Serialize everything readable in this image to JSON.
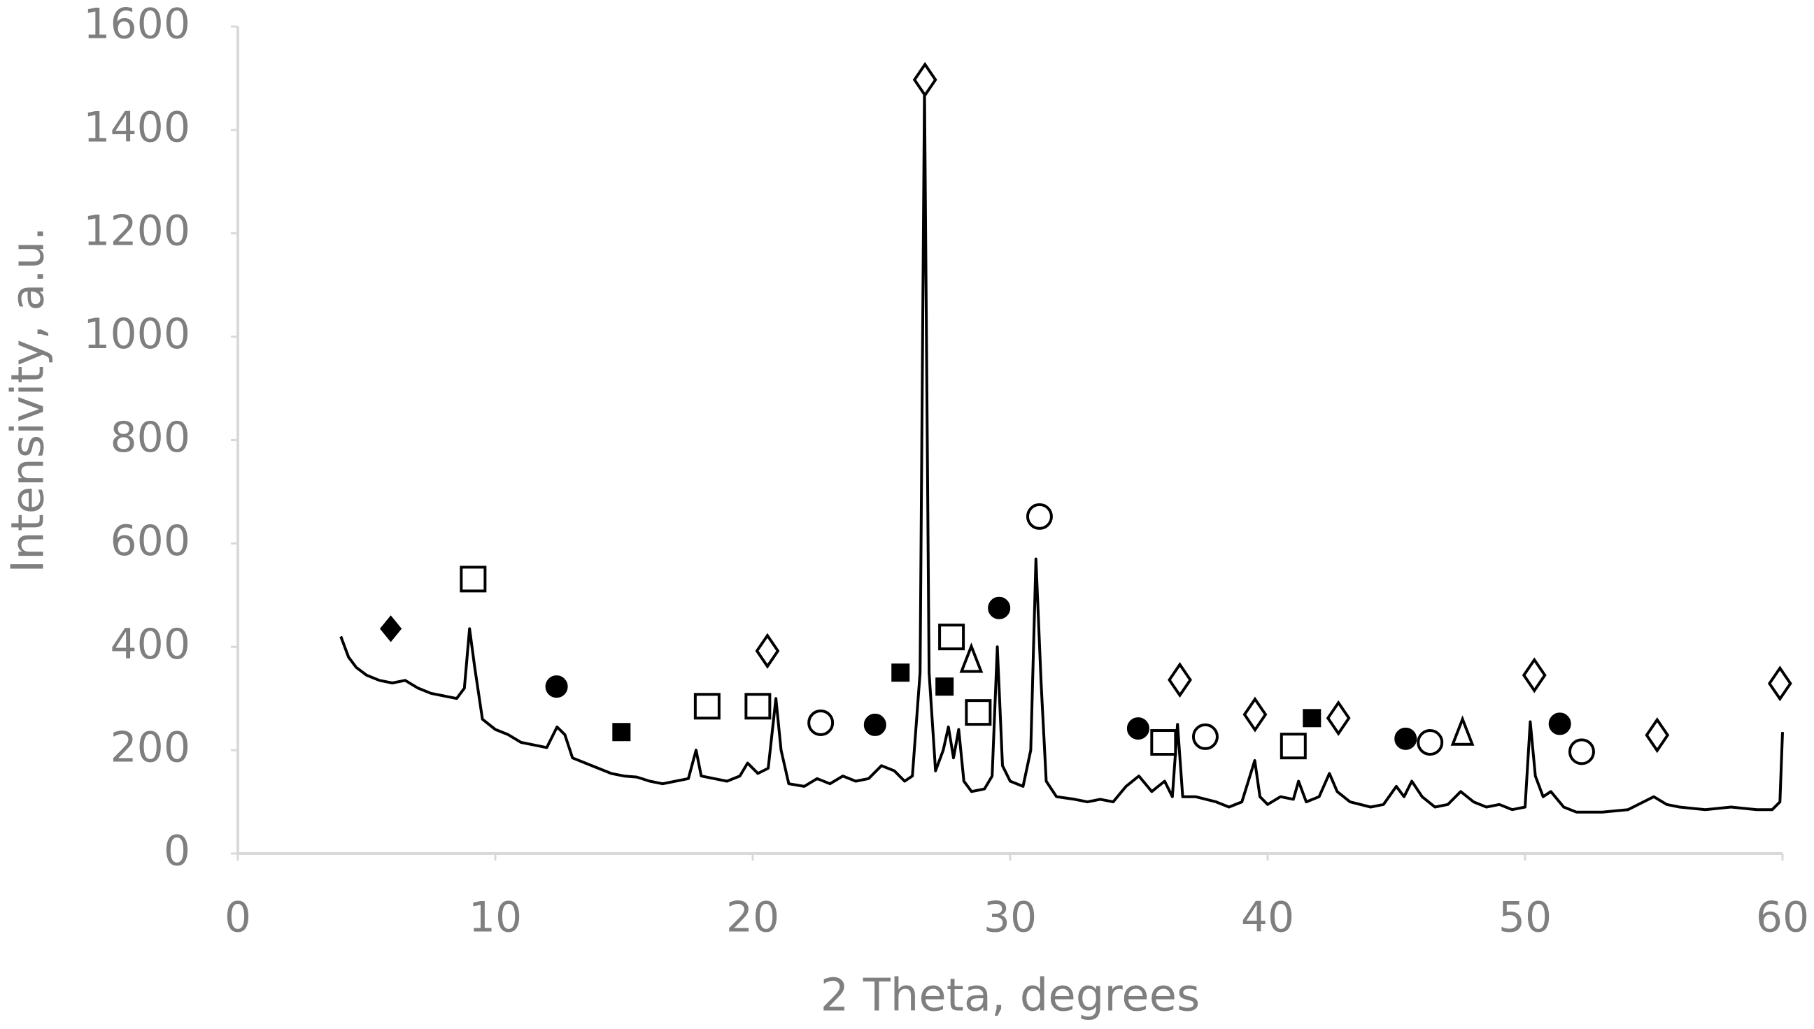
{
  "chart_data": {
    "type": "line",
    "xlabel": "2 Theta, degrees",
    "ylabel": "Intensivity, a.u.",
    "xlim": [
      0,
      60
    ],
    "ylim": [
      0,
      1600
    ],
    "xticks": [
      0,
      10,
      20,
      30,
      40,
      50,
      60
    ],
    "yticks": [
      0,
      200,
      400,
      600,
      800,
      1000,
      1200,
      1400,
      1600
    ],
    "axis_color": "#d9d9d9",
    "text_color": "#7f7f7f",
    "series": [
      {
        "color": "#000000",
        "x": [
          4.0,
          4.3,
          4.6,
          5,
          5.5,
          6,
          6.5,
          7,
          7.5,
          8,
          8.5,
          8.8,
          9.0,
          9.2,
          9.5,
          10,
          10.5,
          11,
          11.5,
          12,
          12.4,
          12.7,
          13,
          13.5,
          14,
          14.5,
          15,
          15.5,
          16,
          16.5,
          17,
          17.5,
          17.8,
          18,
          18.5,
          19,
          19.5,
          19.8,
          20.2,
          20.6,
          20.9,
          21.1,
          21.4,
          22,
          22.5,
          23,
          23.5,
          24,
          24.5,
          25,
          25.5,
          25.9,
          26.2,
          26.5,
          26.67,
          26.85,
          27.1,
          27.4,
          27.6,
          27.8,
          28.0,
          28.2,
          28.5,
          29,
          29.3,
          29.5,
          29.7,
          30,
          30.5,
          30.8,
          31.0,
          31.2,
          31.4,
          31.8,
          32.5,
          33,
          33.5,
          34,
          34.5,
          35,
          35.5,
          36,
          36.3,
          36.5,
          36.7,
          37.2,
          38,
          38.5,
          39,
          39.5,
          39.7,
          40,
          40.5,
          41,
          41.2,
          41.5,
          42,
          42.4,
          42.7,
          43.2,
          44,
          44.5,
          45,
          45.3,
          45.6,
          46,
          46.5,
          47,
          47.5,
          48,
          48.5,
          49,
          49.5,
          50,
          50.2,
          50.4,
          50.7,
          51,
          51.5,
          52,
          53,
          54,
          55,
          55.5,
          56,
          57,
          58,
          59,
          59.6,
          59.9,
          60
        ],
        "values": [
          420,
          380,
          360,
          345,
          335,
          330,
          335,
          320,
          310,
          305,
          300,
          320,
          435,
          360,
          260,
          240,
          230,
          215,
          210,
          205,
          245,
          230,
          185,
          175,
          165,
          155,
          150,
          148,
          140,
          135,
          140,
          145,
          200,
          150,
          145,
          140,
          150,
          175,
          155,
          165,
          300,
          200,
          135,
          130,
          145,
          135,
          150,
          140,
          145,
          170,
          160,
          140,
          150,
          350,
          1480,
          350,
          160,
          200,
          245,
          185,
          240,
          140,
          120,
          125,
          150,
          400,
          170,
          140,
          130,
          200,
          570,
          330,
          140,
          110,
          105,
          100,
          105,
          100,
          130,
          150,
          120,
          140,
          110,
          250,
          110,
          110,
          100,
          90,
          100,
          180,
          110,
          95,
          110,
          105,
          140,
          100,
          110,
          155,
          120,
          100,
          90,
          95,
          130,
          110,
          140,
          110,
          90,
          95,
          120,
          100,
          90,
          95,
          85,
          90,
          255,
          150,
          110,
          120,
          90,
          80,
          80,
          85,
          110,
          95,
          90,
          85,
          90,
          85,
          85,
          100,
          235
        ]
      }
    ],
    "markers": [
      {
        "symbol": "diamond-filled",
        "x": [
          5.94
        ],
        "y": [
          435
        ]
      },
      {
        "symbol": "square-open",
        "x": [
          9.14,
          18.23,
          20.2,
          27.72,
          28.76,
          35.96,
          41.0
        ],
        "y": [
          531,
          285,
          285,
          419,
          273,
          215,
          208
        ]
      },
      {
        "symbol": "circle-filled",
        "x": [
          12.38,
          24.75,
          29.57,
          34.97,
          45.36,
          51.35
        ],
        "y": [
          323,
          249,
          475,
          242,
          222,
          251
        ]
      },
      {
        "symbol": "square-filled",
        "x": [
          14.9,
          25.74,
          27.45,
          41.72
        ],
        "y": [
          235,
          350,
          323,
          262
        ]
      },
      {
        "symbol": "diamond-open",
        "x": [
          20.57,
          26.69,
          36.59,
          39.51,
          42.75,
          50.36,
          55.13,
          59.9
        ],
        "y": [
          392,
          1497,
          336,
          269,
          262,
          345,
          229,
          329
        ]
      },
      {
        "symbol": "circle-open",
        "x": [
          22.64,
          31.14,
          37.58,
          46.31,
          52.2
        ],
        "y": [
          253,
          652,
          226,
          215,
          197
        ]
      },
      {
        "symbol": "triangle-open",
        "x": [
          28.49,
          47.57
        ],
        "y": [
          374,
          233
        ]
      }
    ]
  }
}
